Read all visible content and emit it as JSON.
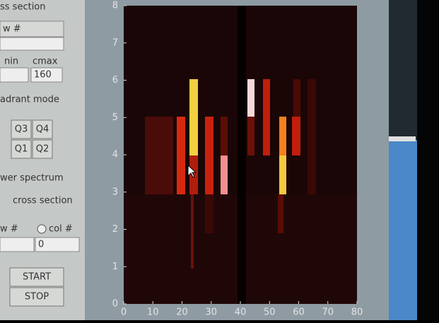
{
  "panel": {
    "section_title": "ss section",
    "row_label": "w #",
    "cmin_label": "nin",
    "cmax_label": "cmax",
    "cmax_value": "160",
    "mode_label": "adrant mode",
    "quadrants": [
      "Q3",
      "Q4",
      "Q1",
      "Q2"
    ],
    "power_label": "wer spectrum",
    "cross_label": "cross section",
    "row_option": "w #",
    "col_option": "col #",
    "index_value": "0",
    "start": "START",
    "stop": "STOP"
  },
  "plot": {
    "xlim": [
      0,
      80
    ],
    "ylim": [
      0,
      8
    ],
    "xticks": [
      0,
      10,
      20,
      30,
      40,
      50,
      60,
      70,
      80
    ],
    "yticks": [
      0,
      1,
      2,
      3,
      4,
      5,
      6,
      7,
      8
    ]
  }
}
